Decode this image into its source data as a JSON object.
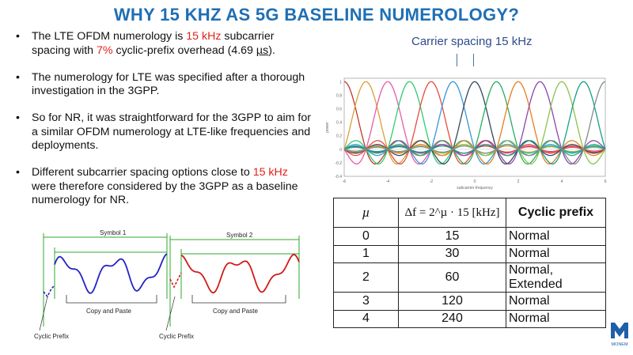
{
  "title": "WHY 15 KHZ AS 5G BASELINE NUMEROLOGY?",
  "bullets": [
    {
      "parts": [
        "The LTE OFDM numerology is ",
        "15 kHz",
        " subcarrier spacing with ",
        "7%",
        " cyclic-prefix overhead (4.69 ",
        "µs",
        ")."
      ]
    },
    {
      "text": "The numerology for LTE was specified after a thorough investigation in the 3GPP."
    },
    {
      "text": "So for NR, it was straightforward for the 3GPP to aim for a similar OFDM numerology at LTE-like frequencies and deployments."
    },
    {
      "parts": [
        "Different subcarrier spacing options close to ",
        "15 kHz",
        " were therefore considered by the 3GPP as a baseline numerology for NR."
      ]
    }
  ],
  "spectrum": {
    "label": "Carrier spacing 15 kHz",
    "ylabel": "power",
    "xlabel": "subcarrier frequency",
    "y_ticks": [
      "1",
      "0.8",
      "0.6",
      "0.4",
      "0.2",
      "0",
      "-0.2",
      "-0.4"
    ],
    "x_ticks": [
      "-6",
      "-4",
      "-2",
      "0",
      "2",
      "4",
      "6"
    ],
    "colors": [
      "#c0392b",
      "#d9a03a",
      "#e85aa8",
      "#2ecc71",
      "#e74c3c",
      "#3498db",
      "#34495e",
      "#27ae60",
      "#e67e22",
      "#8e44ad",
      "#8bc34a",
      "#16a085",
      "#7f8c8d"
    ]
  },
  "table": {
    "headers": [
      "µ",
      "Δf = 2^µ · 15 [kHz]",
      "Cyclic prefix"
    ],
    "rows": [
      [
        "0",
        "15",
        "Normal"
      ],
      [
        "1",
        "30",
        "Normal"
      ],
      [
        "2",
        "60",
        "Normal, Extended"
      ],
      [
        "3",
        "120",
        "Normal"
      ],
      [
        "4",
        "240",
        "Normal"
      ]
    ]
  },
  "symbols": {
    "symbol1": "Symbol 1",
    "symbol2": "Symbol 2",
    "copy_paste_1": "Copy and Paste",
    "copy_paste_2": "Copy and Paste",
    "cp_1": "Cyclic Prefix",
    "cp_2": "Cyclic Prefix",
    "color1": "#2323c8",
    "color2": "#d11a1a",
    "guide": "#2ea82e"
  },
  "logo": {
    "text": "MONEM"
  }
}
